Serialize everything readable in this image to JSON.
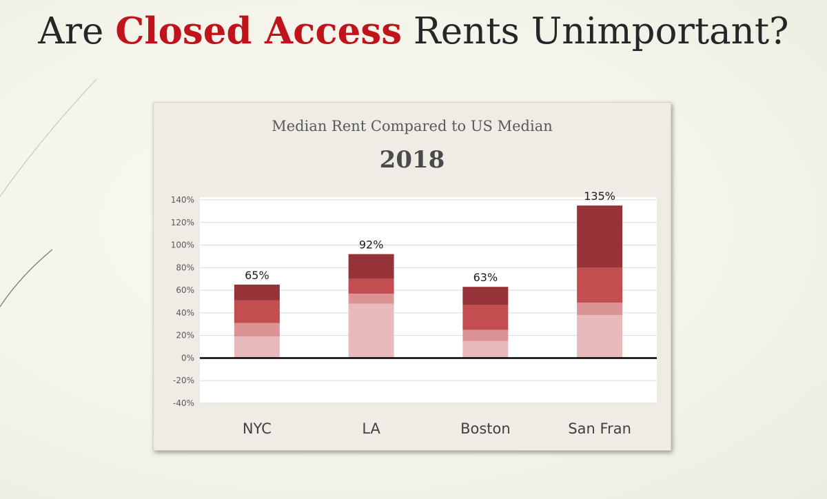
{
  "slide": {
    "title_prefix": "Are ",
    "title_accent": "Closed Access",
    "title_suffix": " Rents Unimportant?"
  },
  "colors": {
    "title_accent": "#c0141c",
    "segment_1": "#e9babb",
    "segment_2": "#dc9396",
    "segment_3": "#c24e50",
    "segment_4": "#963338",
    "axis_line": "#000000",
    "grid": "#d9d9d9"
  },
  "chart_data": {
    "type": "bar",
    "stacked": true,
    "title": "Median Rent Compared to US Median",
    "subtitle": "2018",
    "categories": [
      "NYC",
      "LA",
      "Boston",
      "San Fran"
    ],
    "series": [
      {
        "values": [
          19,
          48,
          15,
          38
        ]
      },
      {
        "values": [
          12,
          9,
          10,
          11
        ]
      },
      {
        "values": [
          20,
          13,
          22,
          31
        ]
      },
      {
        "values": [
          14,
          22,
          16,
          55
        ]
      }
    ],
    "totals": [
      65,
      92,
      63,
      135
    ],
    "total_labels": [
      "65%",
      "92%",
      "63%",
      "135%"
    ],
    "ylim": [
      -40,
      140
    ],
    "yticks": [
      -40,
      -20,
      0,
      20,
      40,
      60,
      80,
      100,
      120,
      140
    ],
    "ytick_labels": [
      "-40%",
      "-20%",
      "0%",
      "20%",
      "40%",
      "60%",
      "80%",
      "100%",
      "120%",
      "140%"
    ],
    "grid": true,
    "legend": "none"
  }
}
